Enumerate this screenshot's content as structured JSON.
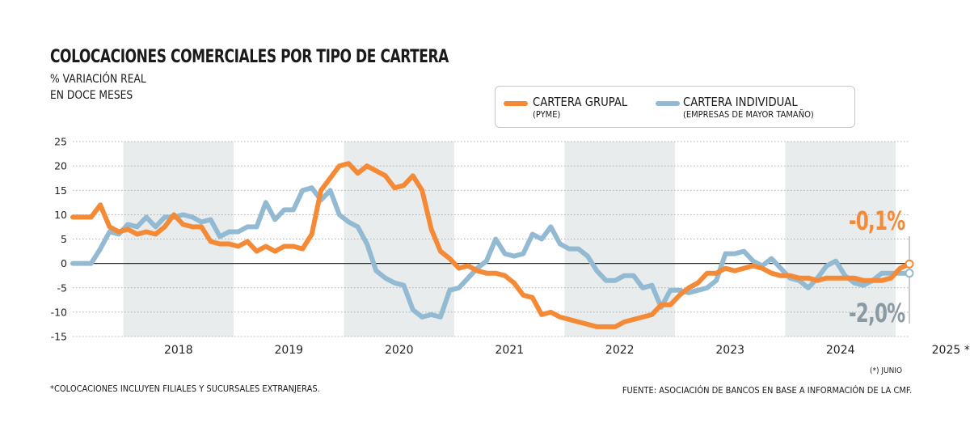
{
  "header": {
    "title": "COLOCACIONES COMERCIALES POR TIPO DE CARTERA",
    "subtitle_line1": "% VARIACIÓN REAL",
    "subtitle_line2": "EN DOCE MESES"
  },
  "legend": {
    "grupal_name": "CARTERA GRUPAL",
    "grupal_sub": "(PYME)",
    "individual_name": "CARTERA INDIVIDUAL",
    "individual_sub": "(EMPRESAS DE MAYOR TAMAÑO)"
  },
  "annotations": {
    "grupal_last": "-0,1%",
    "individual_last": "-2,0%",
    "junio_note": "(*) JUNIO"
  },
  "footer": {
    "footnote": "*COLOCACIONES INCLUYEN FILIALES Y SUCURSALES EXTRANJERAS.",
    "source": "FUENTE: ASOCIACIÓN DE BANCOS EN BASE A INFORMACIÓN DE LA CMF."
  },
  "colors": {
    "grupal": "#f58a36",
    "individual": "#93bad3",
    "band": "#e9ecec",
    "grupal_label": "#f58a36",
    "individual_label": "#8a9aa3"
  },
  "chart_data": {
    "type": "line",
    "ylim": [
      -15,
      25
    ],
    "yticks": [
      25,
      20,
      15,
      10,
      5,
      0,
      -5,
      -10,
      -15
    ],
    "year_labels": [
      "2018",
      "2019",
      "2020",
      "2021",
      "2022",
      "2023",
      "2024",
      "2025 *"
    ],
    "x_start": "2017-07",
    "x_end": "2025-06",
    "grid": "horizontal dotted",
    "shaded_years": [
      "2018",
      "2020",
      "2022",
      "2024"
    ],
    "series": [
      {
        "name": "CARTERA GRUPAL",
        "values": [
          9.5,
          9.5,
          9.5,
          12.0,
          7.5,
          6.5,
          7.0,
          6.0,
          6.5,
          6.0,
          7.5,
          10.0,
          8.0,
          7.5,
          7.5,
          4.5,
          4.0,
          4.0,
          3.5,
          4.5,
          2.5,
          3.5,
          2.5,
          3.5,
          3.5,
          3.0,
          6.0,
          15.0,
          17.5,
          20.0,
          20.5,
          18.5,
          20.0,
          19.0,
          18.0,
          15.5,
          16.0,
          18.0,
          15.0,
          7.0,
          2.5,
          1.0,
          -1.0,
          -0.5,
          -1.5,
          -2.0,
          -2.0,
          -2.5,
          -4.0,
          -6.5,
          -7.0,
          -10.5,
          -10.0,
          -11.0,
          -11.5,
          -12.0,
          -12.5,
          -13.0,
          -13.0,
          -13.0,
          -12.0,
          -11.5,
          -11.0,
          -10.5,
          -8.5,
          -8.5,
          -6.5,
          -5.0,
          -4.0,
          -2.0,
          -2.0,
          -1.0,
          -1.5,
          -1.0,
          -0.5,
          -1.0,
          -2.0,
          -2.5,
          -2.5,
          -3.0,
          -3.0,
          -3.5,
          -3.0,
          -3.0,
          -3.0,
          -3.0,
          -3.5,
          -3.5,
          -3.5,
          -3.0,
          -1.0,
          -0.1
        ]
      },
      {
        "name": "CARTERA INDIVIDUAL",
        "values": [
          0,
          0,
          0,
          3.0,
          6.5,
          6.0,
          8.0,
          7.5,
          9.5,
          7.5,
          9.5,
          9.5,
          10.0,
          9.5,
          8.5,
          9.0,
          5.5,
          6.5,
          6.5,
          7.5,
          7.5,
          12.5,
          9.0,
          11.0,
          11.0,
          15.0,
          15.5,
          13.0,
          15.0,
          10.0,
          8.5,
          7.5,
          4.0,
          -1.5,
          -3.0,
          -4.0,
          -4.5,
          -9.5,
          -11.0,
          -10.5,
          -11.0,
          -5.5,
          -5.0,
          -3.0,
          -1.0,
          0.5,
          5.0,
          2.0,
          1.5,
          2.0,
          6.0,
          5.0,
          7.5,
          4.0,
          3.0,
          3.0,
          1.5,
          -1.5,
          -3.5,
          -3.5,
          -2.5,
          -2.5,
          -5.0,
          -4.5,
          -9.0,
          -5.5,
          -5.5,
          -6.0,
          -5.5,
          -5.0,
          -3.5,
          2.0,
          2.0,
          2.5,
          0.5,
          -0.5,
          1.0,
          -1.0,
          -3.0,
          -3.5,
          -5.0,
          -3.0,
          -0.5,
          0.5,
          -2.5,
          -4.0,
          -4.5,
          -3.5,
          -2.0,
          -2.0,
          -2.0,
          -2.0
        ]
      }
    ]
  }
}
